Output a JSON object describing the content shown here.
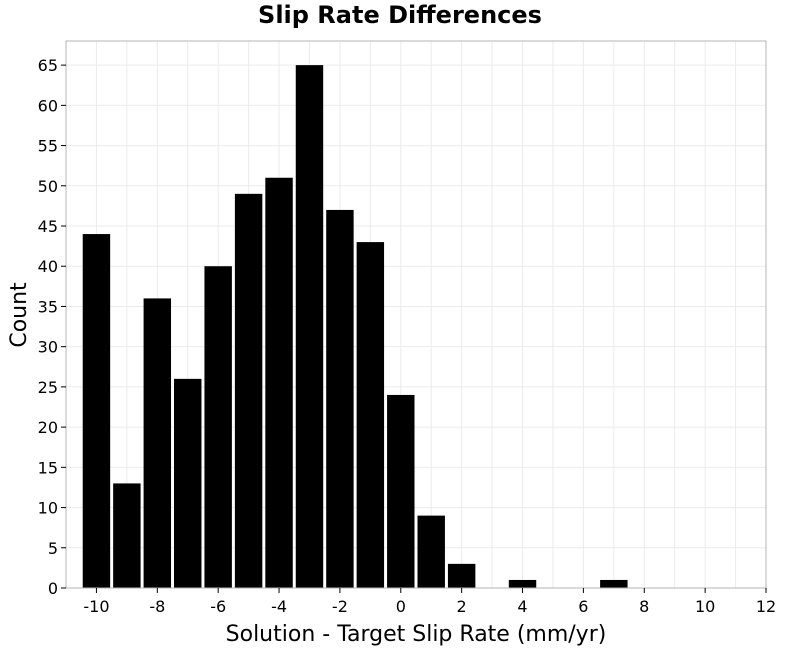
{
  "chart_data": {
    "type": "bar",
    "title": "Slip Rate Differences",
    "xlabel": "Solution - Target Slip Rate (mm/yr)",
    "ylabel": "Count",
    "bin_width": 1,
    "bin_centers": [
      -10,
      -9,
      -8,
      -7,
      -6,
      -5,
      -4,
      -3,
      -2,
      -1,
      0,
      1,
      2,
      3,
      4,
      5,
      6,
      7,
      8
    ],
    "values": [
      44,
      13,
      36,
      26,
      40,
      49,
      51,
      65,
      47,
      43,
      24,
      9,
      3,
      0,
      1,
      0,
      0,
      1,
      0
    ],
    "xlim": [
      -11,
      12
    ],
    "ylim": [
      0,
      68
    ],
    "xticks": [
      -10,
      -8,
      -6,
      -4,
      -2,
      0,
      2,
      4,
      6,
      8,
      10,
      12
    ],
    "yticks": [
      0,
      5,
      10,
      15,
      20,
      25,
      30,
      35,
      40,
      45,
      50,
      55,
      60,
      65
    ],
    "bar_color": "#000000",
    "grid": true
  }
}
